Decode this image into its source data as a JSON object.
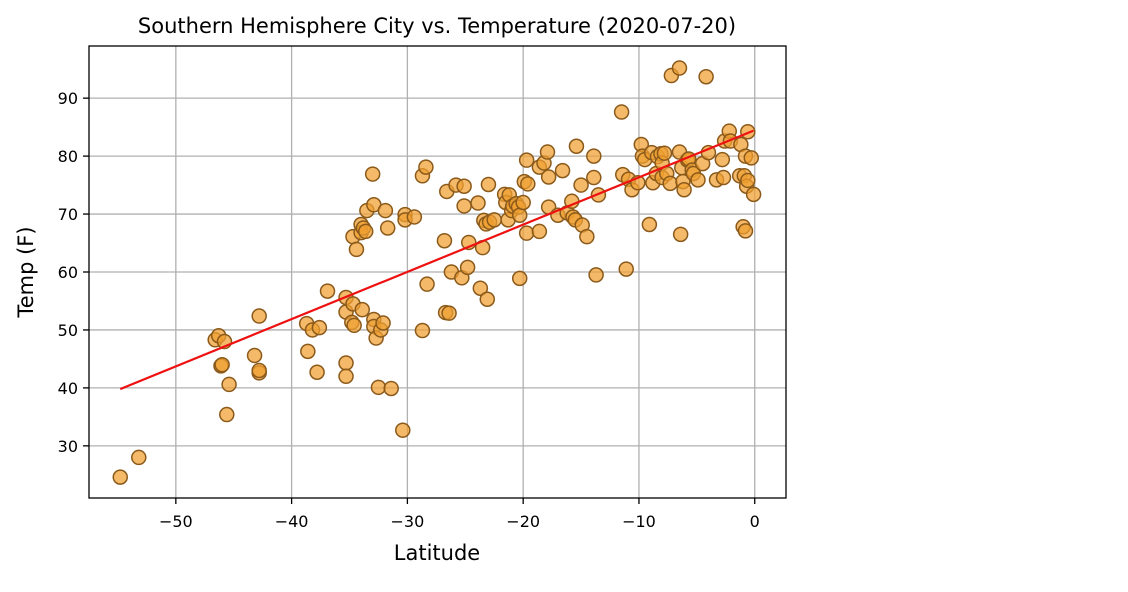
{
  "chart_data": {
    "type": "scatter",
    "title": "Southern Hemisphere City vs. Temperature (2020-07-20)",
    "xlabel": "Latitude",
    "ylabel": "Temp (F)",
    "xlim": [
      -57.5,
      2.7
    ],
    "ylim": [
      21,
      99
    ],
    "xticks": [
      -50,
      -40,
      -30,
      -20,
      -10,
      0
    ],
    "yticks": [
      30,
      40,
      50,
      60,
      70,
      80,
      90
    ],
    "grid": true,
    "colors": {
      "marker_fill": "#f0a030",
      "marker_edge": "#8b5a1a",
      "line": "#ee1111",
      "grid": "#b0b0b0"
    },
    "points": [
      [
        -54.8,
        24.6
      ],
      [
        -53.2,
        28.0
      ],
      [
        -46.6,
        48.3
      ],
      [
        -46.3,
        49.0
      ],
      [
        -46.1,
        43.8
      ],
      [
        -46.0,
        44.0
      ],
      [
        -45.8,
        48.0
      ],
      [
        -45.6,
        35.4
      ],
      [
        -45.4,
        40.6
      ],
      [
        -43.2,
        45.6
      ],
      [
        -42.8,
        52.4
      ],
      [
        -42.8,
        42.6
      ],
      [
        -42.8,
        43.0
      ],
      [
        -38.7,
        51.1
      ],
      [
        -38.6,
        46.3
      ],
      [
        -38.2,
        50.0
      ],
      [
        -37.8,
        42.7
      ],
      [
        -37.6,
        50.4
      ],
      [
        -36.9,
        56.7
      ],
      [
        -35.3,
        55.6
      ],
      [
        -35.3,
        53.1
      ],
      [
        -35.3,
        44.3
      ],
      [
        -35.3,
        42.0
      ],
      [
        -34.8,
        51.3
      ],
      [
        -34.7,
        54.5
      ],
      [
        -34.7,
        66.1
      ],
      [
        -34.6,
        50.8
      ],
      [
        -34.4,
        63.9
      ],
      [
        -34.0,
        68.2
      ],
      [
        -34.0,
        66.8
      ],
      [
        -33.9,
        53.5
      ],
      [
        -33.8,
        67.6
      ],
      [
        -33.6,
        67.0
      ],
      [
        -33.5,
        70.6
      ],
      [
        -33.0,
        76.9
      ],
      [
        -32.9,
        71.6
      ],
      [
        -32.9,
        51.8
      ],
      [
        -32.9,
        50.6
      ],
      [
        -32.7,
        48.6
      ],
      [
        -32.5,
        40.1
      ],
      [
        -32.3,
        50.0
      ],
      [
        -32.1,
        51.2
      ],
      [
        -31.9,
        70.6
      ],
      [
        -31.7,
        67.6
      ],
      [
        -31.4,
        39.9
      ],
      [
        -30.4,
        32.7
      ],
      [
        -30.2,
        69.9
      ],
      [
        -30.2,
        69.0
      ],
      [
        -29.4,
        69.5
      ],
      [
        -28.7,
        49.9
      ],
      [
        -28.7,
        76.6
      ],
      [
        -28.4,
        78.1
      ],
      [
        -28.3,
        57.9
      ],
      [
        -26.8,
        65.4
      ],
      [
        -26.7,
        53.0
      ],
      [
        -26.6,
        73.9
      ],
      [
        -26.4,
        52.9
      ],
      [
        -26.2,
        60.0
      ],
      [
        -25.8,
        75.0
      ],
      [
        -25.3,
        59.0
      ],
      [
        -25.1,
        74.8
      ],
      [
        -25.1,
        71.4
      ],
      [
        -24.8,
        60.8
      ],
      [
        -24.7,
        65.1
      ],
      [
        -23.9,
        71.9
      ],
      [
        -23.7,
        57.2
      ],
      [
        -23.5,
        64.2
      ],
      [
        -23.4,
        68.9
      ],
      [
        -23.2,
        68.3
      ],
      [
        -23.1,
        55.3
      ],
      [
        -23.0,
        75.1
      ],
      [
        -22.9,
        68.6
      ],
      [
        -22.5,
        69.0
      ],
      [
        -21.6,
        73.4
      ],
      [
        -21.5,
        72.0
      ],
      [
        -21.3,
        69.0
      ],
      [
        -21.2,
        73.3
      ],
      [
        -21.0,
        70.6
      ],
      [
        -20.9,
        71.4
      ],
      [
        -20.6,
        71.8
      ],
      [
        -20.4,
        71.2
      ],
      [
        -20.3,
        69.8
      ],
      [
        -20.3,
        58.9
      ],
      [
        -20.0,
        72.0
      ],
      [
        -19.9,
        75.6
      ],
      [
        -19.7,
        66.7
      ],
      [
        -19.7,
        79.3
      ],
      [
        -19.6,
        75.2
      ],
      [
        -18.6,
        78.1
      ],
      [
        -18.6,
        67.0
      ],
      [
        -18.2,
        78.8
      ],
      [
        -17.9,
        80.7
      ],
      [
        -17.8,
        76.4
      ],
      [
        -17.8,
        71.2
      ],
      [
        -17.0,
        69.8
      ],
      [
        -16.6,
        77.5
      ],
      [
        -16.2,
        70.2
      ],
      [
        -15.8,
        72.2
      ],
      [
        -15.7,
        69.5
      ],
      [
        -15.5,
        69.0
      ],
      [
        -15.4,
        81.7
      ],
      [
        -15.0,
        75.0
      ],
      [
        -14.9,
        68.1
      ],
      [
        -14.5,
        66.1
      ],
      [
        -13.9,
        80.0
      ],
      [
        -13.9,
        76.3
      ],
      [
        -13.7,
        59.5
      ],
      [
        -13.5,
        73.3
      ],
      [
        -11.5,
        87.6
      ],
      [
        -11.4,
        76.8
      ],
      [
        -11.1,
        60.5
      ],
      [
        -10.9,
        76.0
      ],
      [
        -10.6,
        74.2
      ],
      [
        -10.1,
        75.4
      ],
      [
        -9.8,
        82.0
      ],
      [
        -9.7,
        80.0
      ],
      [
        -9.5,
        79.4
      ],
      [
        -9.1,
        68.2
      ],
      [
        -8.9,
        80.6
      ],
      [
        -8.8,
        75.4
      ],
      [
        -8.5,
        77.0
      ],
      [
        -8.4,
        79.9
      ],
      [
        -8.1,
        80.4
      ],
      [
        -8.0,
        76.3
      ],
      [
        -8.0,
        78.8
      ],
      [
        -7.8,
        80.5
      ],
      [
        -7.6,
        77.0
      ],
      [
        -7.3,
        75.3
      ],
      [
        -7.2,
        93.9
      ],
      [
        -6.5,
        95.2
      ],
      [
        -6.5,
        80.7
      ],
      [
        -6.4,
        66.5
      ],
      [
        -6.3,
        78.0
      ],
      [
        -6.2,
        75.6
      ],
      [
        -6.1,
        74.2
      ],
      [
        -5.8,
        79.3
      ],
      [
        -5.7,
        79.5
      ],
      [
        -5.4,
        77.6
      ],
      [
        -5.3,
        77.0
      ],
      [
        -4.9,
        75.9
      ],
      [
        -4.5,
        78.7
      ],
      [
        -4.2,
        93.7
      ],
      [
        -4.0,
        80.6
      ],
      [
        -3.3,
        75.9
      ],
      [
        -2.8,
        79.4
      ],
      [
        -2.7,
        76.3
      ],
      [
        -2.6,
        82.6
      ],
      [
        -2.2,
        84.3
      ],
      [
        -2.1,
        82.6
      ],
      [
        -1.3,
        76.6
      ],
      [
        -1.2,
        82.0
      ],
      [
        -1.0,
        67.8
      ],
      [
        -0.9,
        76.6
      ],
      [
        -0.8,
        67.1
      ],
      [
        -0.8,
        80.0
      ],
      [
        -0.7,
        74.8
      ],
      [
        -0.6,
        75.8
      ],
      [
        -0.6,
        84.2
      ],
      [
        -0.3,
        79.7
      ],
      [
        -0.1,
        73.4
      ]
    ],
    "regression": {
      "x": [
        -54.8,
        -0.1
      ],
      "y": [
        39.8,
        84.4
      ]
    }
  }
}
